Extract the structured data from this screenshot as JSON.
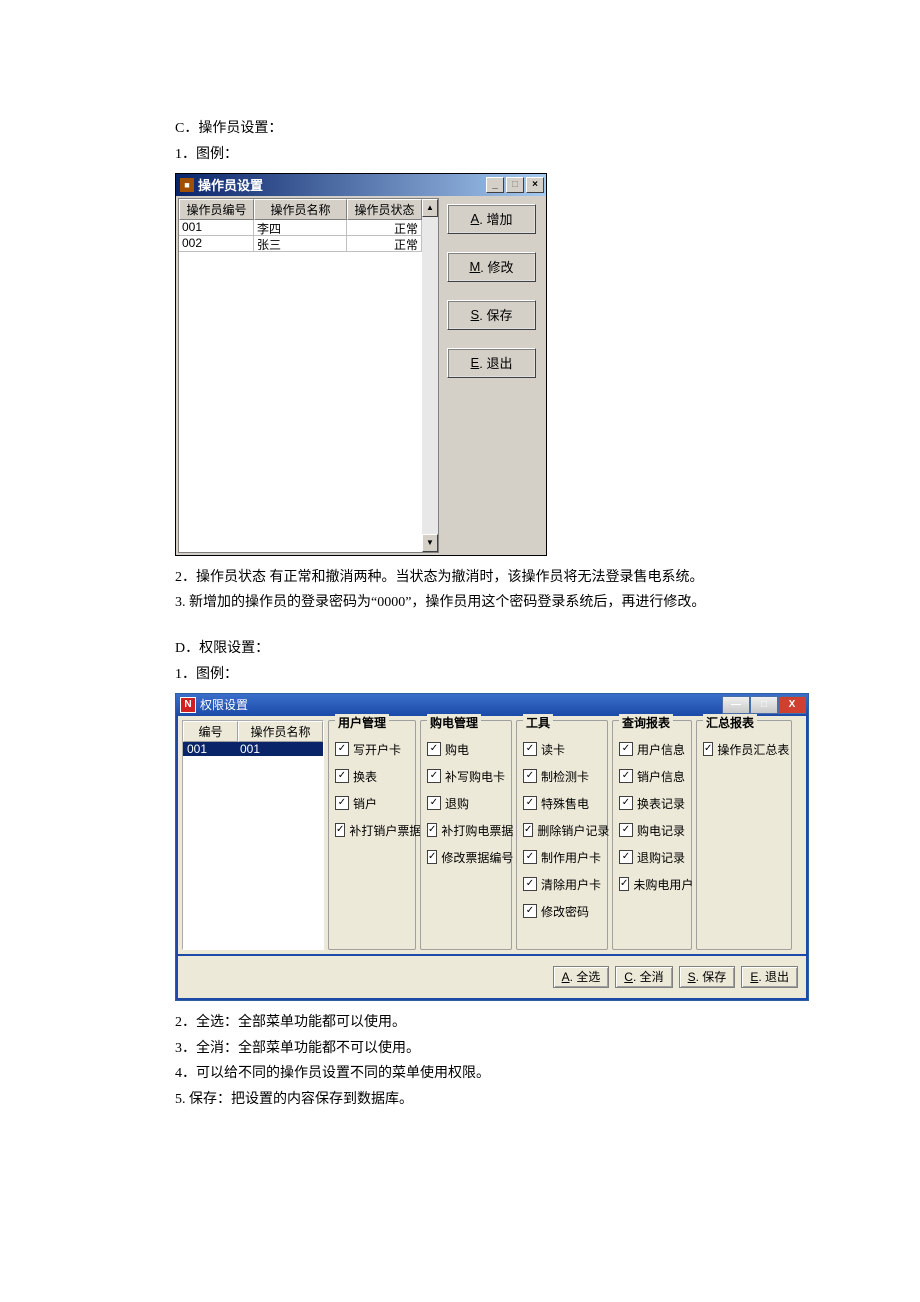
{
  "sectionC": {
    "heading": "C．操作员设置：",
    "legendLine": "1．图例："
  },
  "win1": {
    "title": "操作员设置",
    "headers": {
      "id": "操作员编号",
      "name": "操作员名称",
      "status": "操作员状态"
    },
    "rows": [
      {
        "id": "001",
        "name": "李四",
        "status": "正常"
      },
      {
        "id": "002",
        "name": "张三",
        "status": "正常"
      }
    ],
    "buttons": {
      "add": {
        "key": "A",
        "label": ". 增加"
      },
      "modify": {
        "key": "M",
        "label": ". 修改"
      },
      "save": {
        "key": "S",
        "label": ". 保存"
      },
      "exit": {
        "key": "E",
        "label": ". 退出"
      }
    }
  },
  "notesC": {
    "n2": "2．操作员状态 有正常和撤消两种。当状态为撤消时，该操作员将无法登录售电系统。",
    "n3": "3. 新增加的操作员的登录密码为“0000”，操作员用这个密码登录系统后，再进行修改。"
  },
  "sectionD": {
    "heading": "D．权限设置：",
    "legendLine": "1．图例："
  },
  "win2": {
    "title": "权限设置",
    "opList": {
      "headers": {
        "id": "编号",
        "name": "操作员名称"
      },
      "rows": [
        {
          "id": "001",
          "name": "001"
        }
      ]
    },
    "groups": {
      "user": {
        "title": "用户管理",
        "items": [
          "写开户卡",
          "换表",
          "销户",
          "补打销户票据"
        ]
      },
      "buy": {
        "title": "购电管理",
        "items": [
          "购电",
          "补写购电卡",
          "退购",
          "补打购电票据",
          "修改票据编号"
        ]
      },
      "tool": {
        "title": "工具",
        "items": [
          "读卡",
          "制检测卡",
          "特殊售电",
          "删除销户记录",
          "制作用户卡",
          "清除用户卡",
          "修改密码"
        ]
      },
      "query": {
        "title": "查询报表",
        "items": [
          "用户信息",
          "销户信息",
          "换表记录",
          "购电记录",
          "退购记录",
          "未购电用户"
        ]
      },
      "summary": {
        "title": "汇总报表",
        "items": [
          "操作员汇总表"
        ]
      }
    },
    "footerButtons": {
      "all": {
        "key": "A",
        "label": ". 全选"
      },
      "none": {
        "key": "C",
        "label": ". 全消"
      },
      "save": {
        "key": "S",
        "label": ". 保存"
      },
      "exit": {
        "key": "E",
        "label": ". 退出"
      }
    }
  },
  "notesD": {
    "n2": "2．全选：全部菜单功能都可以使用。",
    "n3": "3．全消：全部菜单功能都不可以使用。",
    "n4": "4．可以给不同的操作员设置不同的菜单使用权限。",
    "n5": "5. 保存：把设置的内容保存到数据库。"
  }
}
